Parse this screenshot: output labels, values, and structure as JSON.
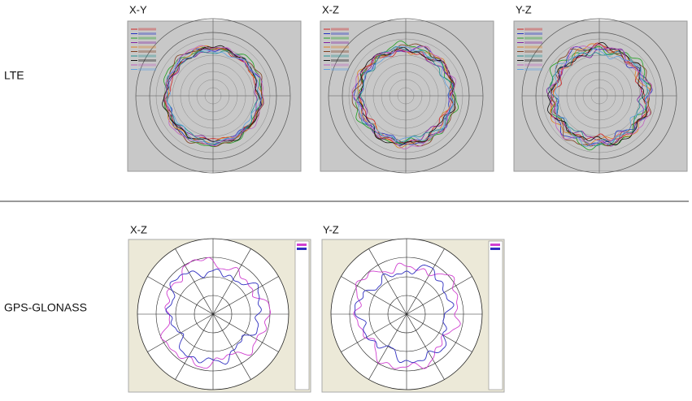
{
  "sections": [
    {
      "label": "LTE",
      "plots": [
        {
          "title": "X-Y"
        },
        {
          "title": "X-Z"
        },
        {
          "title": "Y-Z"
        }
      ]
    },
    {
      "label": "GPS-GLONASS",
      "plots": [
        {
          "title": "X-Z"
        },
        {
          "title": "Y-Z"
        }
      ]
    }
  ]
}
